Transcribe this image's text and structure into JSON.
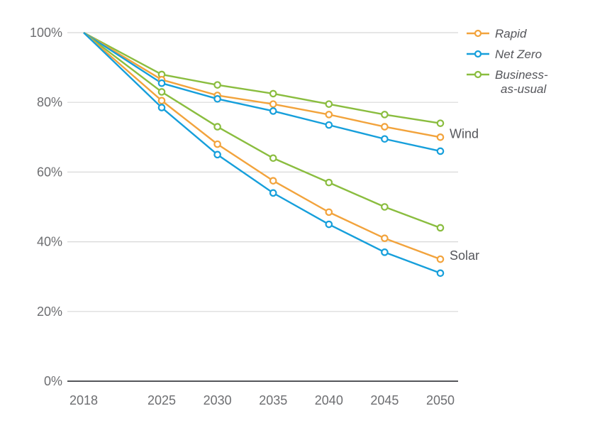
{
  "chart_data": {
    "type": "line",
    "title": "",
    "x": [
      2018,
      2025,
      2030,
      2035,
      2040,
      2045,
      2050
    ],
    "x_tick_labels": [
      "2018",
      "2025",
      "2030",
      "2035",
      "2040",
      "2045",
      "2050"
    ],
    "ylim": [
      0,
      100
    ],
    "y_ticks": [
      0,
      20,
      40,
      60,
      80,
      100
    ],
    "y_tick_labels": [
      "0%",
      "20%",
      "40%",
      "60%",
      "80%",
      "100%"
    ],
    "grid": "horizontal",
    "legend_position": "top-right",
    "colors": {
      "rapid": "#F2A33C",
      "net_zero": "#169FDB",
      "business_as_usual": "#8ABD3F",
      "grid": "#d8d8d8",
      "axis": "#55565a",
      "tick_text": "#6d6e71",
      "annotation_text": "#55565b",
      "marker_fill": "#ffffff"
    },
    "legend": [
      {
        "id": "rapid",
        "label": "Rapid",
        "label_lines": [
          "Rapid"
        ],
        "color": "#F2A33C"
      },
      {
        "id": "net-zero",
        "label": "Net Zero",
        "label_lines": [
          "Net Zero"
        ],
        "color": "#169FDB"
      },
      {
        "id": "business-as-usual",
        "label": "Business-as-usual",
        "label_lines": [
          "Business-",
          "as-usual"
        ],
        "color": "#8ABD3F"
      }
    ],
    "series": [
      {
        "id": "wind-business-as-usual",
        "group": "Wind",
        "scenario": "Business-as-usual",
        "color": "#8ABD3F",
        "values": [
          100,
          88,
          85,
          82.5,
          79.5,
          76.5,
          74
        ]
      },
      {
        "id": "wind-rapid",
        "group": "Wind",
        "scenario": "Rapid",
        "color": "#F2A33C",
        "values": [
          100,
          86.5,
          82,
          79.5,
          76.5,
          73,
          70
        ]
      },
      {
        "id": "wind-net-zero",
        "group": "Wind",
        "scenario": "Net Zero",
        "color": "#169FDB",
        "values": [
          100,
          85.5,
          81,
          77.5,
          73.5,
          69.5,
          66
        ]
      },
      {
        "id": "solar-business-as-usual",
        "group": "Solar",
        "scenario": "Business-as-usual",
        "color": "#8ABD3F",
        "values": [
          100,
          83,
          73,
          64,
          57,
          50,
          44
        ]
      },
      {
        "id": "solar-rapid",
        "group": "Solar",
        "scenario": "Rapid",
        "color": "#F2A33C",
        "values": [
          100,
          80.5,
          68,
          57.5,
          48.5,
          41,
          35
        ]
      },
      {
        "id": "solar-net-zero",
        "group": "Solar",
        "scenario": "Net Zero",
        "color": "#169FDB",
        "values": [
          100,
          78.5,
          65,
          54,
          45,
          37,
          31
        ]
      }
    ],
    "annotations": [
      {
        "id": "wind",
        "text": "Wind",
        "y": 71
      },
      {
        "id": "solar",
        "text": "Solar",
        "y": 36
      }
    ]
  }
}
